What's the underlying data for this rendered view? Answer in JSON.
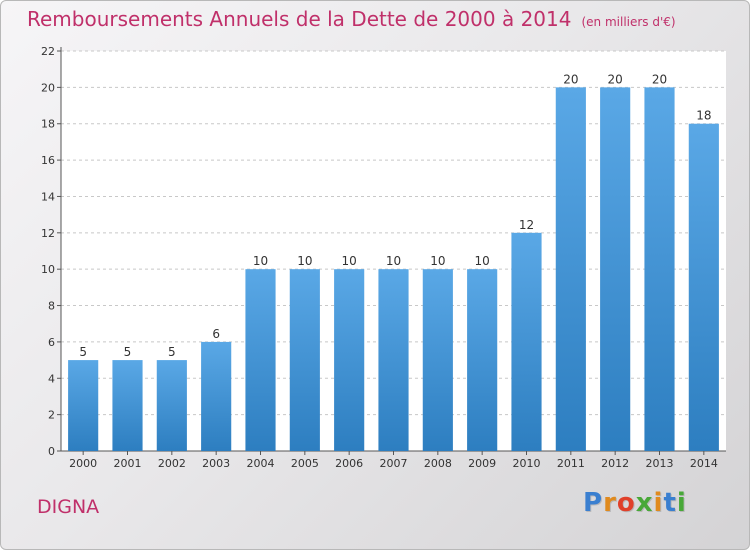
{
  "title": "Remboursements Annuels de la Dette de 2000 à 2014",
  "unit_note": "(en milliers d'€)",
  "place": "DIGNA",
  "brand": {
    "text": "Proxiti",
    "letter_colors": [
      "#3a7fd0",
      "#e08a1e",
      "#e0402a",
      "#48a838",
      "#e08a1e",
      "#3a7fd0",
      "#48a838"
    ]
  },
  "colors": {
    "title": "#c0306a",
    "bar_top": "#5aa8e6",
    "bar_bottom": "#2d7ec0",
    "grid": "#c8c8c8"
  },
  "chart_data": {
    "type": "bar",
    "categories": [
      "2000",
      "2001",
      "2002",
      "2003",
      "2004",
      "2005",
      "2006",
      "2007",
      "2008",
      "2009",
      "2010",
      "2011",
      "2012",
      "2013",
      "2014"
    ],
    "values": [
      5,
      5,
      5,
      6,
      10,
      10,
      10,
      10,
      10,
      10,
      12,
      20,
      20,
      20,
      18
    ],
    "value_labels": [
      "5",
      "5",
      "5",
      "6",
      "10",
      "10",
      "10",
      "10",
      "10",
      "10",
      "12",
      "20",
      "20",
      "20",
      "18"
    ],
    "yticks": [
      "0",
      "2",
      "4",
      "6",
      "8",
      "10",
      "12",
      "14",
      "16",
      "18",
      "20",
      "22"
    ],
    "ylim": [
      0,
      22
    ],
    "grid": true,
    "title": "Remboursements Annuels de la Dette de 2000 à 2014",
    "xlabel": "",
    "ylabel": ""
  }
}
